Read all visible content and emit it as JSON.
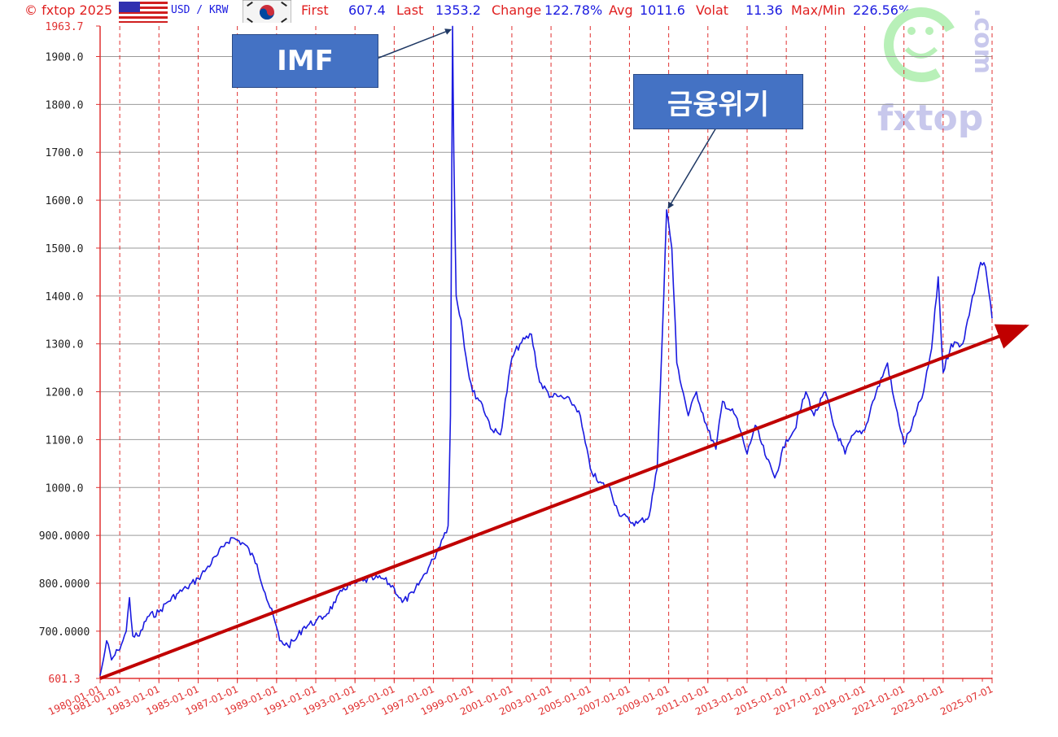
{
  "header": {
    "copyright": "© fxtop 2025",
    "pair": "USD / KRW",
    "first_label": "First",
    "first_value": "607.4",
    "last_label": "Last",
    "last_value": "1353.2",
    "change_label": "Change",
    "change_value": "122.78%",
    "avg_label": "Avg",
    "avg_value": "1011.6",
    "volat_label": "Volat",
    "volat_value": "11.36",
    "maxmin_label": "Max/Min",
    "maxmin_value": "226.56%"
  },
  "watermark": {
    "brand": "fxtop",
    "domain": ".com"
  },
  "annotations": {
    "imf": "IMF",
    "crisis": "금융위기"
  },
  "colors": {
    "series": "#1a1ae0",
    "axis": "#e03030",
    "grid_h": "#9a9a9a",
    "grid_v": "#e03030",
    "trend": "#c00000",
    "box": "#4472c4"
  },
  "chart_data": {
    "type": "line",
    "ylim": [
      601.3,
      1963.7
    ],
    "y_ticks": [
      {
        "value": 1963.7,
        "label": "1963.7",
        "color": "red"
      },
      {
        "value": 1900,
        "label": "1900.0"
      },
      {
        "value": 1800,
        "label": "1800.0"
      },
      {
        "value": 1700,
        "label": "1700.0"
      },
      {
        "value": 1600,
        "label": "1600.0"
      },
      {
        "value": 1500,
        "label": "1500.0"
      },
      {
        "value": 1400,
        "label": "1400.0"
      },
      {
        "value": 1300,
        "label": "1300.0"
      },
      {
        "value": 1200,
        "label": "1200.0"
      },
      {
        "value": 1100,
        "label": "1100.0"
      },
      {
        "value": 1000,
        "label": "1000.0"
      },
      {
        "value": 900,
        "label": "900.0000"
      },
      {
        "value": 800,
        "label": "800.0000"
      },
      {
        "value": 700,
        "label": "700.0000"
      },
      {
        "value": 601.3,
        "label": "601.3",
        "color": "red"
      }
    ],
    "x_ticks": [
      "1980-01-01",
      "1981-01-01",
      "1983-01-01",
      "1985-01-01",
      "1987-01-01",
      "1989-01-01",
      "1991-01-01",
      "1993-01-01",
      "1995-01-01",
      "1997-01-01",
      "1999-01-01",
      "2001-01-01",
      "2003-01-01",
      "2005-01-01",
      "2007-01-01",
      "2009-01-01",
      "2011-01-01",
      "2013-01-01",
      "2015-01-01",
      "2017-01-01",
      "2019-01-01",
      "2021-01-01",
      "2023-01-01",
      "2025-07-01"
    ],
    "x_range": [
      "1980-01-01",
      "2025-07-01"
    ],
    "series": [
      {
        "points": [
          [
            "1980-01-01",
            607
          ],
          [
            "1980-03-01",
            640
          ],
          [
            "1980-05-01",
            680
          ],
          [
            "1980-08-01",
            640
          ],
          [
            "1980-12-01",
            660
          ],
          [
            "1981-03-01",
            680
          ],
          [
            "1981-05-01",
            700
          ],
          [
            "1981-07-01",
            770
          ],
          [
            "1981-09-01",
            690
          ],
          [
            "1982-01-01",
            690
          ],
          [
            "1982-06-01",
            730
          ],
          [
            "1983-01-01",
            740
          ],
          [
            "1983-06-01",
            760
          ],
          [
            "1984-01-01",
            780
          ],
          [
            "1984-06-01",
            790
          ],
          [
            "1985-01-01",
            810
          ],
          [
            "1985-06-01",
            830
          ],
          [
            "1986-01-01",
            860
          ],
          [
            "1986-06-01",
            885
          ],
          [
            "1986-10-01",
            895
          ],
          [
            "1987-01-01",
            890
          ],
          [
            "1987-06-01",
            880
          ],
          [
            "1988-01-01",
            840
          ],
          [
            "1988-06-01",
            780
          ],
          [
            "1988-12-01",
            720
          ],
          [
            "1989-03-01",
            680
          ],
          [
            "1989-08-01",
            670
          ],
          [
            "1989-12-01",
            680
          ],
          [
            "1990-06-01",
            710
          ],
          [
            "1991-01-01",
            720
          ],
          [
            "1991-06-01",
            730
          ],
          [
            "1992-01-01",
            760
          ],
          [
            "1992-06-01",
            790
          ],
          [
            "1993-01-01",
            800
          ],
          [
            "1993-06-01",
            805
          ],
          [
            "1994-01-01",
            810
          ],
          [
            "1994-06-01",
            810
          ],
          [
            "1995-01-01",
            790
          ],
          [
            "1995-06-01",
            760
          ],
          [
            "1996-01-01",
            780
          ],
          [
            "1996-06-01",
            810
          ],
          [
            "1997-01-01",
            850
          ],
          [
            "1997-06-01",
            890
          ],
          [
            "1997-10-01",
            920
          ],
          [
            "1997-11-15",
            1150
          ],
          [
            "1997-12-24",
            1963
          ],
          [
            "1998-01-15",
            1700
          ],
          [
            "1998-03-01",
            1400
          ],
          [
            "1998-06-01",
            1350
          ],
          [
            "1998-10-01",
            1250
          ],
          [
            "1999-01-01",
            1200
          ],
          [
            "1999-06-01",
            1180
          ],
          [
            "2000-01-01",
            1120
          ],
          [
            "2000-06-01",
            1110
          ],
          [
            "2001-01-01",
            1270
          ],
          [
            "2001-06-01",
            1300
          ],
          [
            "2002-01-01",
            1320
          ],
          [
            "2002-06-01",
            1220
          ],
          [
            "2003-01-01",
            1190
          ],
          [
            "2003-06-01",
            1190
          ],
          [
            "2004-01-01",
            1180
          ],
          [
            "2004-06-01",
            1160
          ],
          [
            "2005-01-01",
            1040
          ],
          [
            "2005-06-01",
            1010
          ],
          [
            "2006-01-01",
            1000
          ],
          [
            "2006-06-01",
            950
          ],
          [
            "2007-01-01",
            930
          ],
          [
            "2007-06-01",
            925
          ],
          [
            "2008-01-01",
            940
          ],
          [
            "2008-06-01",
            1040
          ],
          [
            "2008-10-01",
            1400
          ],
          [
            "2008-11-24",
            1580
          ],
          [
            "2009-03-01",
            1500
          ],
          [
            "2009-06-01",
            1260
          ],
          [
            "2010-01-01",
            1150
          ],
          [
            "2010-06-01",
            1200
          ],
          [
            "2011-01-01",
            1120
          ],
          [
            "2011-06-01",
            1080
          ],
          [
            "2011-10-01",
            1180
          ],
          [
            "2012-06-01",
            1150
          ],
          [
            "2013-01-01",
            1070
          ],
          [
            "2013-06-01",
            1130
          ],
          [
            "2014-01-01",
            1060
          ],
          [
            "2014-06-01",
            1020
          ],
          [
            "2015-01-01",
            1100
          ],
          [
            "2015-06-01",
            1120
          ],
          [
            "2016-01-01",
            1200
          ],
          [
            "2016-06-01",
            1150
          ],
          [
            "2017-01-01",
            1200
          ],
          [
            "2017-06-01",
            1130
          ],
          [
            "2018-01-01",
            1070
          ],
          [
            "2018-06-01",
            1110
          ],
          [
            "2019-01-01",
            1120
          ],
          [
            "2019-06-01",
            1180
          ],
          [
            "2020-03-01",
            1260
          ],
          [
            "2020-06-01",
            1200
          ],
          [
            "2021-01-01",
            1090
          ],
          [
            "2021-06-01",
            1130
          ],
          [
            "2022-01-01",
            1200
          ],
          [
            "2022-06-01",
            1290
          ],
          [
            "2022-10-01",
            1440
          ],
          [
            "2023-01-01",
            1240
          ],
          [
            "2023-06-01",
            1300
          ],
          [
            "2024-01-01",
            1300
          ],
          [
            "2024-06-01",
            1380
          ],
          [
            "2024-12-01",
            1470
          ],
          [
            "2025-03-01",
            1460
          ],
          [
            "2025-07-01",
            1353
          ]
        ]
      }
    ],
    "trend_line": [
      [
        "1980-01-01",
        601.3
      ],
      [
        "2025-07-01",
        1310
      ]
    ]
  }
}
